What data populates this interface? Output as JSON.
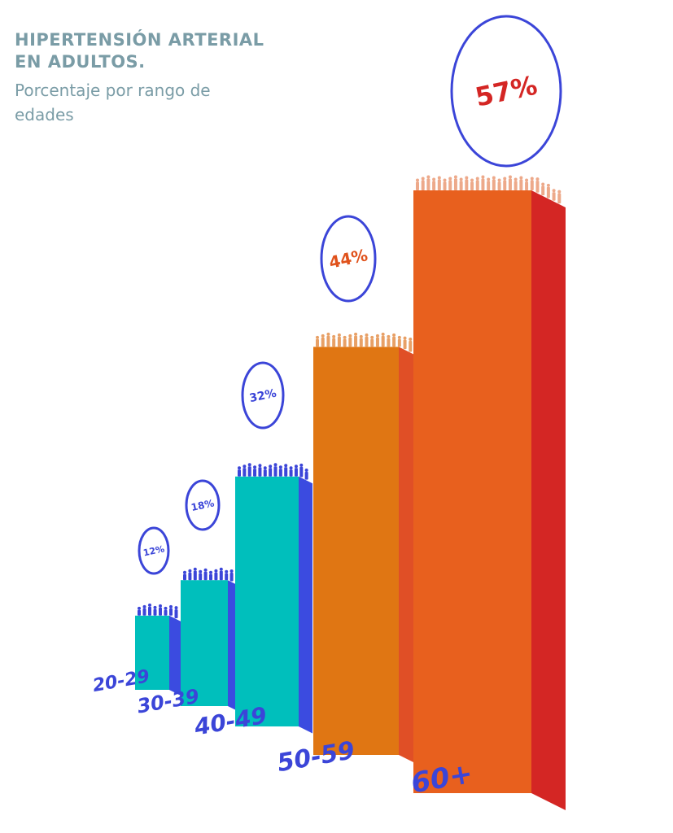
{
  "header": {
    "title": "HIPERTENSIÓN ARTERIAL EN ADULTOS.",
    "subtitle": "Porcentaje por rango de edades"
  },
  "colors": {
    "title": "#7a9ca6",
    "teal_front": "#00bfbc",
    "blue_side": "#3b4be0",
    "orange_front": "#e07613",
    "orange_side": "#e04f26",
    "redorange_front": "#e8601e",
    "red_side": "#d42624",
    "label_blue": "#3b45d8",
    "pct_orange": "#e0521c",
    "pct_red": "#d42624"
  },
  "chart_data": {
    "type": "bar",
    "title": "HIPERTENSIÓN ARTERIAL EN ADULTOS.",
    "subtitle": "Porcentaje por rango de edades",
    "categories": [
      "20-29",
      "30-39",
      "40-49",
      "50-59",
      "60+"
    ],
    "values": [
      12,
      18,
      32,
      44,
      57
    ],
    "value_labels": [
      "12%",
      "18%",
      "32%",
      "44%",
      "57%"
    ],
    "xlabel": "",
    "ylabel": "",
    "ylim": [
      0,
      60
    ],
    "grid": false,
    "legend": "none"
  }
}
